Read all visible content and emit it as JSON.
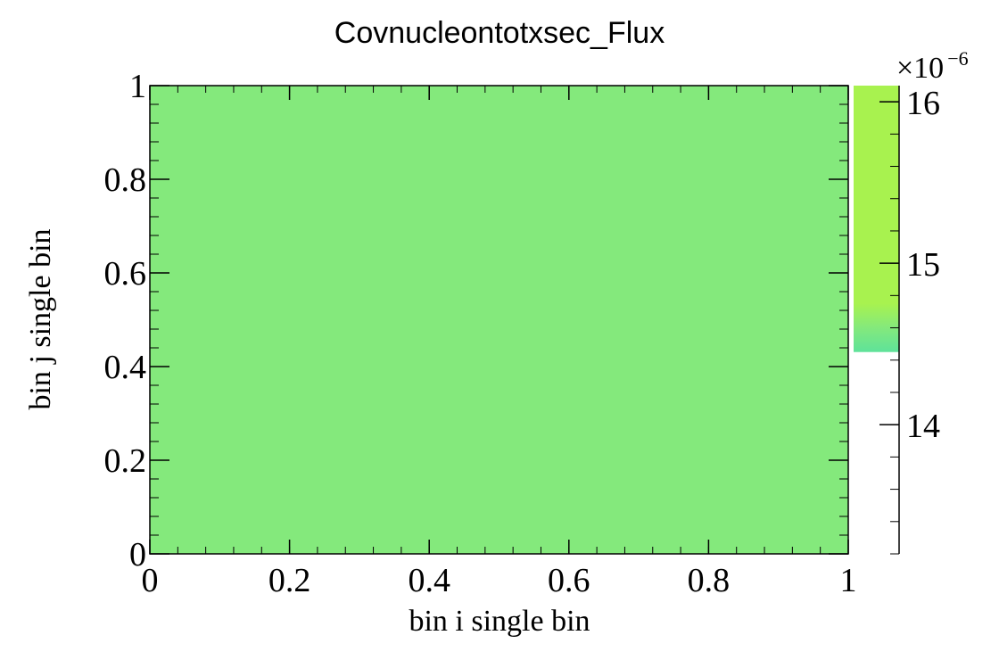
{
  "chart_data": {
    "type": "heatmap",
    "title": "Covnucleontotxsec_Flux",
    "xlabel": "bin i single bin",
    "ylabel": "bin j single bin",
    "xlim": [
      0,
      1
    ],
    "ylim": [
      0,
      1
    ],
    "x_ticks": [
      "0",
      "0.2",
      "0.4",
      "0.6",
      "0.8",
      "1"
    ],
    "y_ticks": [
      "0",
      "0.2",
      "0.4",
      "0.6",
      "0.8",
      "1"
    ],
    "cells": [
      {
        "x_range": [
          0,
          1
        ],
        "y_range": [
          0,
          1
        ],
        "value": 14.55,
        "color": "#84e97c"
      }
    ],
    "colorbar": {
      "range": [
        13.2,
        16.1
      ],
      "ticks": [
        "14",
        "15",
        "16"
      ],
      "exponent_base": "×10",
      "exponent_power": "−6",
      "gradient": [
        {
          "value": 14.45,
          "color": "#5ee29a"
        },
        {
          "value": 14.6,
          "color": "#84e97c"
        },
        {
          "value": 14.75,
          "color": "#a8f24f"
        },
        {
          "value": 16.1,
          "color": "#a8f24f"
        }
      ],
      "filled_range": [
        14.45,
        16.1
      ]
    }
  }
}
